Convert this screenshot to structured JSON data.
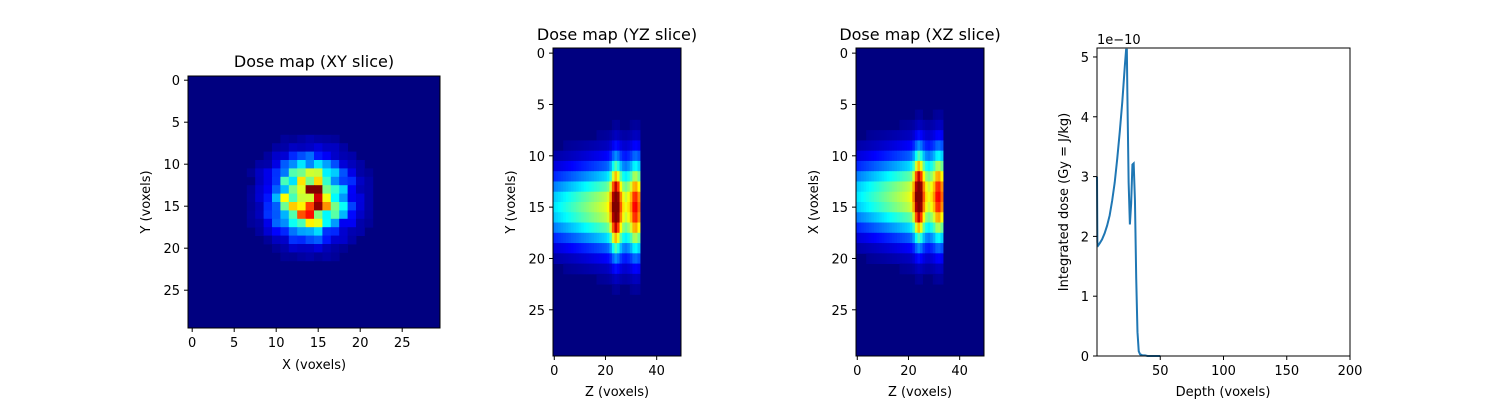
{
  "chart_data": [
    {
      "type": "heatmap",
      "title": "Dose map (XY slice)",
      "xlabel": "X (voxels)",
      "ylabel": "Y (voxels)",
      "colormap": "jet",
      "xlim": [
        -0.5,
        29.5
      ],
      "ylim": [
        29.5,
        -0.5
      ],
      "xticks": [
        0,
        5,
        10,
        15,
        20,
        25
      ],
      "yticks": [
        0,
        5,
        10,
        15,
        20,
        25
      ],
      "grid_size": [
        30,
        30
      ],
      "peak_center": {
        "x": 14,
        "y": 14
      }
    },
    {
      "type": "heatmap",
      "title": "Dose map (YZ slice)",
      "xlabel": "Z (voxels)",
      "ylabel": "Y (voxels)",
      "colormap": "jet",
      "xlim": [
        -0.5,
        49.5
      ],
      "ylim": [
        29.5,
        -0.5
      ],
      "xticks": [
        0,
        20,
        40
      ],
      "yticks": [
        0,
        5,
        10,
        15,
        20,
        25
      ],
      "grid_size": [
        50,
        30
      ],
      "peak_center": {
        "z": 24,
        "y": 15
      }
    },
    {
      "type": "heatmap",
      "title": "Dose map (XZ slice)",
      "xlabel": "Z (voxels)",
      "ylabel": "X (voxels)",
      "colormap": "jet",
      "xlim": [
        -0.5,
        49.5
      ],
      "ylim": [
        29.5,
        -0.5
      ],
      "xticks": [
        0,
        20,
        40
      ],
      "yticks": [
        0,
        5,
        10,
        15,
        20,
        25
      ],
      "grid_size": [
        50,
        30
      ],
      "peak_center": {
        "z": 24,
        "x": 14
      }
    },
    {
      "type": "line",
      "xlabel": "Depth (voxels)",
      "ylabel": "Integrated dose (Gy = J/kg)",
      "offset_text": "1e−10",
      "xlim": [
        0,
        200
      ],
      "ylim": [
        0,
        5.15
      ],
      "xticks": [
        50,
        100,
        150,
        200
      ],
      "yticks": [
        0,
        1,
        2,
        3,
        4,
        5
      ],
      "series": [
        {
          "color": "#1f77b4",
          "x": [
            0,
            0.3,
            1,
            2,
            4,
            6,
            8,
            10,
            12,
            14,
            16,
            18,
            20,
            21,
            22,
            23,
            23.6,
            24,
            25,
            26,
            27,
            28,
            29,
            30,
            31,
            32,
            33,
            34,
            35,
            36,
            38,
            40,
            45,
            50
          ],
          "y": [
            3.0,
            1.9,
            1.85,
            1.88,
            1.95,
            2.05,
            2.18,
            2.35,
            2.6,
            2.9,
            3.3,
            3.75,
            4.25,
            4.55,
            4.85,
            5.12,
            5.12,
            4.4,
            2.9,
            2.2,
            2.55,
            3.2,
            3.22,
            2.6,
            1.3,
            0.4,
            0.08,
            0.03,
            0.02,
            0.01,
            0.01,
            0.0,
            0.0,
            0.0
          ]
        }
      ]
    }
  ]
}
